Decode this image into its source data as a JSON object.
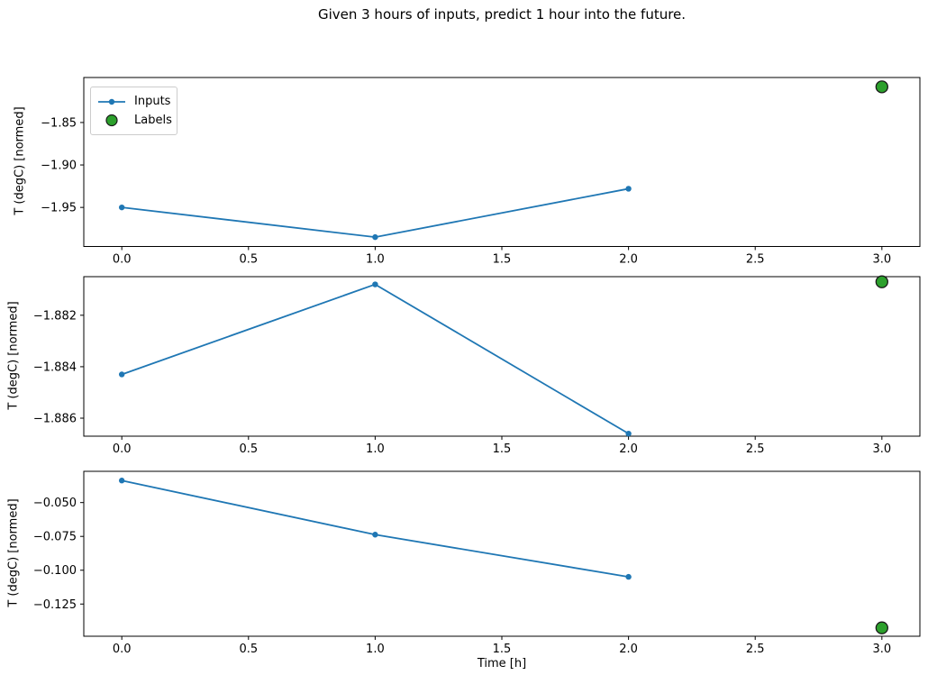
{
  "colors": {
    "inputs": "#1f77b4",
    "labels_fill": "#2ca02c",
    "labels_edge": "#1a1a1a",
    "axis": "#000000"
  },
  "chart_data": {
    "type": "line",
    "title": "Given 3 hours of inputs, predict 1 hour into the future.",
    "xlabel": "Time [h]",
    "legend_entries": [
      "Inputs",
      "Labels"
    ],
    "legend_position": "upper left of top subplot",
    "grid": false,
    "x_inputs": [
      0,
      1,
      2
    ],
    "x_label_point": 3,
    "xlim": [
      -0.15,
      3.15
    ],
    "xtick_values": [
      0.0,
      0.5,
      1.0,
      1.5,
      2.0,
      2.5,
      3.0
    ],
    "xtick_labels": [
      "0.0",
      "0.5",
      "1.0",
      "1.5",
      "2.0",
      "2.5",
      "3.0"
    ],
    "subplots": [
      {
        "ylabel": "T (degC) [normed]",
        "series": [
          {
            "name": "Inputs",
            "x": [
              0,
              1,
              2
            ],
            "y": [
              -1.95,
              -1.985,
              -1.928
            ]
          },
          {
            "name": "Labels",
            "x": [
              3
            ],
            "y": [
              -1.808
            ]
          }
        ],
        "inputs_y": [
          -1.95,
          -1.985,
          -1.928
        ],
        "label_y": -1.808,
        "ytick_values": [
          -1.85,
          -1.9,
          -1.95
        ],
        "ytick_labels": [
          "−1.85",
          "−1.90",
          "−1.95"
        ],
        "ylim": [
          -1.996,
          -1.797
        ]
      },
      {
        "ylabel": "T (degC) [normed]",
        "series": [
          {
            "name": "Inputs",
            "x": [
              0,
              1,
              2
            ],
            "y": [
              -1.8843,
              -1.8808,
              -1.8866
            ]
          },
          {
            "name": "Labels",
            "x": [
              3
            ],
            "y": [
              -1.8807
            ]
          }
        ],
        "inputs_y": [
          -1.8843,
          -1.8808,
          -1.8866
        ],
        "label_y": -1.8807,
        "ytick_values": [
          -1.882,
          -1.884,
          -1.886
        ],
        "ytick_labels": [
          "−1.882",
          "−1.884",
          "−1.886"
        ],
        "ylim": [
          -1.8867,
          -1.8805
        ]
      },
      {
        "ylabel": "T (degC) [normed]",
        "series": [
          {
            "name": "Inputs",
            "x": [
              0,
              1,
              2
            ],
            "y": [
              -0.0337,
              -0.0737,
              -0.1049
            ]
          },
          {
            "name": "Labels",
            "x": [
              3
            ],
            "y": [
              -0.1426
            ]
          }
        ],
        "inputs_y": [
          -0.0337,
          -0.0737,
          -0.1049
        ],
        "label_y": -0.1426,
        "ytick_values": [
          -0.05,
          -0.075,
          -0.1,
          -0.125
        ],
        "ytick_labels": [
          "−0.050",
          "−0.075",
          "−0.100",
          "−0.125"
        ],
        "ylim": [
          -0.1488,
          -0.0269
        ]
      }
    ]
  }
}
